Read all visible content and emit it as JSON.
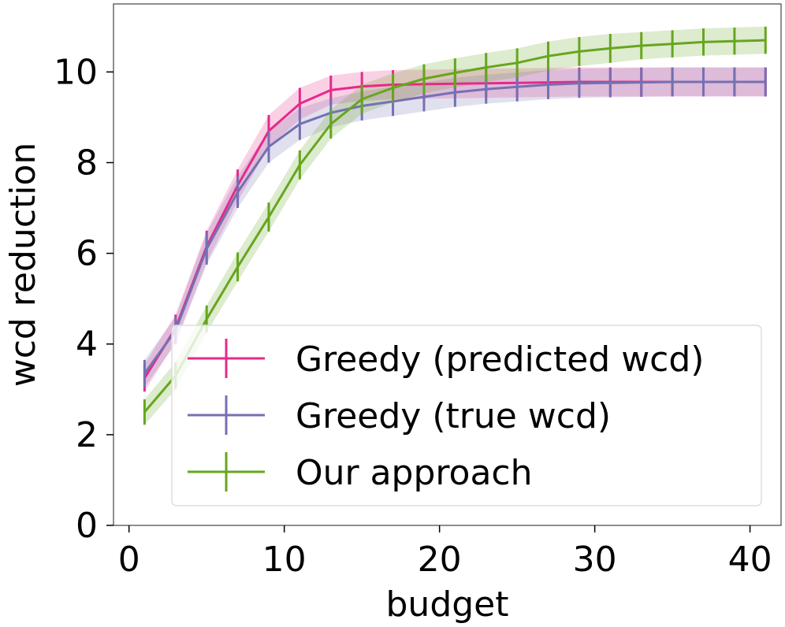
{
  "chart_data": {
    "type": "line",
    "title": "",
    "xlabel": "budget",
    "ylabel": "wcd reduction",
    "xlim": [
      -1,
      42
    ],
    "ylim": [
      0,
      11.5
    ],
    "xticks": [
      0,
      10,
      20,
      30,
      40
    ],
    "yticks": [
      0,
      2,
      4,
      6,
      8,
      10
    ],
    "legend_position": "lower-right",
    "x": [
      1,
      3,
      5,
      7,
      9,
      11,
      13,
      15,
      17,
      19,
      21,
      23,
      25,
      27,
      29,
      31,
      33,
      35,
      37,
      39,
      41
    ],
    "series": [
      {
        "name": "Greedy (predicted wcd)",
        "color": "#e7298a",
        "values": [
          3.25,
          4.35,
          6.15,
          7.5,
          8.7,
          9.3,
          9.6,
          9.68,
          9.72,
          9.73,
          9.74,
          9.75,
          9.76,
          9.77,
          9.78,
          9.78,
          9.78,
          9.78,
          9.78,
          9.78,
          9.78
        ],
        "errors": [
          0.3,
          0.3,
          0.35,
          0.35,
          0.35,
          0.35,
          0.32,
          0.32,
          0.32,
          0.32,
          0.32,
          0.32,
          0.32,
          0.32,
          0.32,
          0.32,
          0.32,
          0.32,
          0.32,
          0.32,
          0.32
        ]
      },
      {
        "name": "Greedy (true wcd)",
        "color": "#7570b3",
        "values": [
          3.35,
          4.3,
          6.1,
          7.35,
          8.35,
          8.85,
          9.1,
          9.25,
          9.35,
          9.45,
          9.55,
          9.62,
          9.67,
          9.72,
          9.75,
          9.76,
          9.77,
          9.78,
          9.78,
          9.78,
          9.78
        ],
        "errors": [
          0.3,
          0.3,
          0.35,
          0.35,
          0.35,
          0.35,
          0.32,
          0.32,
          0.32,
          0.32,
          0.32,
          0.32,
          0.32,
          0.32,
          0.32,
          0.32,
          0.32,
          0.32,
          0.32,
          0.32,
          0.32
        ]
      },
      {
        "name": "Our approach",
        "color": "#66a61e",
        "values": [
          2.5,
          3.3,
          4.55,
          5.7,
          6.8,
          7.95,
          8.85,
          9.4,
          9.65,
          9.85,
          9.98,
          10.1,
          10.2,
          10.35,
          10.45,
          10.52,
          10.58,
          10.62,
          10.66,
          10.68,
          10.7
        ],
        "errors": [
          0.28,
          0.3,
          0.3,
          0.32,
          0.32,
          0.32,
          0.32,
          0.32,
          0.32,
          0.32,
          0.32,
          0.32,
          0.32,
          0.32,
          0.32,
          0.32,
          0.3,
          0.3,
          0.3,
          0.3,
          0.3
        ]
      }
    ]
  }
}
